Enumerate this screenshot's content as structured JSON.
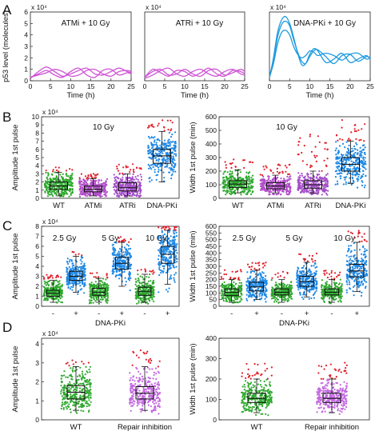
{
  "figure": {
    "panels": [
      {
        "letter": "A"
      },
      {
        "letter": "B"
      },
      {
        "letter": "C"
      },
      {
        "letter": "D"
      }
    ]
  },
  "colors": {
    "wt": "#2ea82e",
    "atm": "#b14ec9",
    "atr": "#a34ec7",
    "dnapk": "#1e88e5",
    "repair": "#c266e0",
    "outlier": "#e0202b",
    "line_magenta": "#cf55d6",
    "line_blue": "#1e9be0"
  },
  "chart_data": [
    {
      "id": "A1",
      "type": "line",
      "annotation": "ATMi + 10 Gy",
      "ylabel": "p53 level (molecules)",
      "xlabel": "Time (h)",
      "x_ticks": [
        0,
        5,
        10,
        15,
        20,
        25
      ],
      "y_ticks": [
        0,
        1,
        2,
        3,
        4,
        5,
        6
      ],
      "y_exponent": "x 10⁴",
      "xlim": [
        0,
        25
      ],
      "ylim": [
        0,
        6
      ],
      "series": [
        {
          "x": [
            0,
            2,
            4,
            6,
            8,
            10,
            12,
            14,
            16,
            18,
            20,
            22,
            24,
            25
          ],
          "values": [
            0.3,
            0.6,
            0.9,
            0.5,
            0.3,
            0.8,
            1.1,
            0.5,
            0.3,
            0.9,
            1.0,
            0.5,
            0.7,
            0.6
          ]
        },
        {
          "x": [
            0,
            2,
            4,
            6,
            8,
            10,
            12,
            14,
            16,
            18,
            20,
            22,
            24,
            25
          ],
          "values": [
            0.2,
            0.8,
            1.2,
            0.8,
            0.4,
            0.6,
            0.9,
            1.1,
            0.6,
            0.5,
            0.8,
            1.1,
            0.8,
            0.7
          ]
        },
        {
          "x": [
            0,
            2,
            4,
            6,
            8,
            10,
            12,
            14,
            16,
            18,
            20,
            22,
            24,
            25
          ],
          "values": [
            0.3,
            0.5,
            0.7,
            1.0,
            0.8,
            0.4,
            0.5,
            0.9,
            1.0,
            0.6,
            0.4,
            0.8,
            0.9,
            0.8
          ]
        }
      ]
    },
    {
      "id": "A2",
      "type": "line",
      "annotation": "ATRi + 10 Gy",
      "xlabel": "Time (h)",
      "x_ticks": [
        0,
        5,
        10,
        15,
        20,
        25
      ],
      "y_exponent": "x 10⁴",
      "xlim": [
        0,
        25
      ],
      "ylim": [
        0,
        6
      ],
      "series": [
        {
          "x": [
            0,
            2,
            4,
            6,
            8,
            10,
            12,
            14,
            16,
            18,
            20,
            22,
            24,
            25
          ],
          "values": [
            0.3,
            0.8,
            1.0,
            0.5,
            0.6,
            1.0,
            0.6,
            0.4,
            0.9,
            1.0,
            0.5,
            0.7,
            1.0,
            0.8
          ]
        },
        {
          "x": [
            0,
            2,
            4,
            6,
            8,
            10,
            12,
            14,
            16,
            18,
            20,
            22,
            24,
            25
          ],
          "values": [
            0.2,
            0.5,
            0.9,
            1.1,
            0.6,
            0.4,
            0.8,
            1.0,
            0.6,
            0.4,
            0.8,
            1.0,
            0.6,
            0.5
          ]
        },
        {
          "x": [
            0,
            2,
            4,
            6,
            8,
            10,
            12,
            14,
            16,
            18,
            20,
            22,
            24,
            25
          ],
          "values": [
            0.3,
            1.0,
            0.7,
            0.4,
            0.9,
            0.8,
            0.4,
            0.7,
            1.1,
            0.6,
            0.4,
            0.9,
            0.8,
            0.6
          ]
        }
      ]
    },
    {
      "id": "A3",
      "type": "line",
      "annotation": "DNA-PKi + 10 Gy",
      "xlabel": "Time (h)",
      "x_ticks": [
        0,
        5,
        10,
        15,
        20,
        25
      ],
      "y_exponent": "x 10⁴",
      "xlim": [
        0,
        25
      ],
      "ylim": [
        0,
        6
      ],
      "series": [
        {
          "x": [
            0,
            1,
            2,
            3,
            4,
            5,
            6,
            7,
            8,
            9,
            10,
            11,
            12,
            14,
            16,
            18,
            20,
            22,
            24,
            25
          ],
          "values": [
            0.3,
            2.0,
            4.2,
            5.3,
            5.6,
            5.0,
            3.8,
            2.4,
            1.4,
            1.5,
            2.3,
            2.8,
            2.6,
            1.6,
            1.9,
            2.4,
            1.6,
            1.9,
            2.2,
            1.9
          ]
        },
        {
          "x": [
            0,
            1,
            2,
            3,
            4,
            5,
            6,
            7,
            8,
            9,
            10,
            11,
            12,
            14,
            16,
            18,
            20,
            22,
            24,
            25
          ],
          "values": [
            0.3,
            1.8,
            3.8,
            4.9,
            5.2,
            4.8,
            3.6,
            2.5,
            1.7,
            1.5,
            2.1,
            2.6,
            2.7,
            2.1,
            1.5,
            2.2,
            2.3,
            1.7,
            2.1,
            2.0
          ]
        },
        {
          "x": [
            0,
            1,
            2,
            3,
            4,
            5,
            6,
            7,
            8,
            9,
            10,
            11,
            12,
            14,
            16,
            18,
            20,
            22,
            24,
            25
          ],
          "values": [
            0.3,
            1.5,
            3.2,
            4.2,
            4.4,
            4.0,
            3.0,
            2.3,
            2.0,
            2.2,
            2.6,
            2.5,
            2.2,
            2.4,
            2.2,
            1.8,
            2.3,
            2.4,
            1.9,
            2.0
          ]
        }
      ]
    },
    {
      "id": "B1",
      "type": "box_scatter",
      "annotation": "10 Gy",
      "ylabel": "Amplitude 1st pulse",
      "y_ticks": [
        0,
        1,
        2,
        3,
        4,
        5,
        6,
        7,
        8,
        9,
        10
      ],
      "y_exponent": "x 10⁴",
      "ylim": [
        0,
        10
      ],
      "categories": [
        "WT",
        "ATMi",
        "ATRi",
        "DNA-PKi"
      ],
      "groups": [
        {
          "q1": 1.1,
          "median": 1.5,
          "q3": 2.0,
          "wlo": 0.3,
          "whi": 3.2,
          "max": 3.8,
          "color": "wt"
        },
        {
          "q1": 0.8,
          "median": 1.1,
          "q3": 1.5,
          "wlo": 0.3,
          "whi": 2.4,
          "max": 3.0,
          "color": "atm"
        },
        {
          "q1": 0.9,
          "median": 1.3,
          "q3": 1.9,
          "wlo": 0.3,
          "whi": 3.0,
          "max": 4.2,
          "color": "atr"
        },
        {
          "q1": 4.3,
          "median": 5.2,
          "q3": 6.0,
          "wlo": 2.0,
          "whi": 8.2,
          "max": 9.8,
          "color": "dnapk"
        }
      ]
    },
    {
      "id": "B2",
      "type": "box_scatter",
      "annotation": "10 Gy",
      "ylabel": "Width 1st pulse (min)",
      "y_ticks": [
        0,
        100,
        200,
        300,
        400,
        500,
        600
      ],
      "ylim": [
        0,
        600
      ],
      "categories": [
        "WT",
        "ATMi",
        "ATRi",
        "DNA-PKi"
      ],
      "groups": [
        {
          "q1": 80,
          "median": 105,
          "q3": 130,
          "wlo": 40,
          "whi": 210,
          "max": 300,
          "color": "wt"
        },
        {
          "q1": 70,
          "median": 90,
          "q3": 115,
          "wlo": 40,
          "whi": 170,
          "max": 250,
          "color": "atm"
        },
        {
          "q1": 75,
          "median": 100,
          "q3": 130,
          "wlo": 40,
          "whi": 200,
          "max": 480,
          "color": "atr"
        },
        {
          "q1": 200,
          "median": 250,
          "q3": 300,
          "wlo": 110,
          "whi": 420,
          "max": 580,
          "color": "dnapk"
        }
      ]
    },
    {
      "id": "C1",
      "type": "box_scatter",
      "ylabel": "Amplitude 1st pulse",
      "xlabel": "DNA-PKi",
      "y_ticks": [
        0,
        1,
        2,
        3,
        4,
        5,
        6,
        7,
        8
      ],
      "y_exponent": "x 10⁴",
      "ylim": [
        0,
        8
      ],
      "dose_labels": [
        "2.5 Gy",
        "5 Gy",
        "10 Gy"
      ],
      "categories": [
        "-",
        "+",
        "-",
        "+",
        "-",
        "+"
      ],
      "groups": [
        {
          "q1": 1.0,
          "median": 1.3,
          "q3": 1.6,
          "wlo": 0.4,
          "whi": 2.6,
          "max": 3.2,
          "color": "wt"
        },
        {
          "q1": 2.6,
          "median": 3.0,
          "q3": 3.5,
          "wlo": 1.4,
          "whi": 5.0,
          "max": 5.6,
          "color": "dnapk"
        },
        {
          "q1": 1.1,
          "median": 1.4,
          "q3": 1.8,
          "wlo": 0.4,
          "whi": 2.8,
          "max": 3.4,
          "color": "wt"
        },
        {
          "q1": 3.7,
          "median": 4.3,
          "q3": 4.9,
          "wlo": 2.0,
          "whi": 6.4,
          "max": 7.0,
          "color": "dnapk"
        },
        {
          "q1": 1.1,
          "median": 1.5,
          "q3": 1.9,
          "wlo": 0.4,
          "whi": 3.2,
          "max": 3.8,
          "color": "wt"
        },
        {
          "q1": 4.3,
          "median": 5.2,
          "q3": 6.0,
          "wlo": 2.2,
          "whi": 7.6,
          "max": 8.0,
          "color": "dnapk"
        }
      ]
    },
    {
      "id": "C2",
      "type": "box_scatter",
      "ylabel": "Width 1st pulse (min)",
      "xlabel": "DNA-PKi",
      "y_ticks": [
        0,
        50,
        100,
        150,
        200,
        250,
        300,
        350,
        400,
        450,
        500,
        550,
        600
      ],
      "ylim": [
        0,
        600
      ],
      "dose_labels": [
        "2.5 Gy",
        "5 Gy",
        "10 Gy"
      ],
      "categories": [
        "-",
        "+",
        "-",
        "+",
        "-",
        "+"
      ],
      "groups": [
        {
          "q1": 80,
          "median": 105,
          "q3": 130,
          "wlo": 30,
          "whi": 200,
          "max": 280,
          "color": "wt"
        },
        {
          "q1": 115,
          "median": 145,
          "q3": 180,
          "wlo": 50,
          "whi": 270,
          "max": 330,
          "color": "dnapk"
        },
        {
          "q1": 85,
          "median": 105,
          "q3": 130,
          "wlo": 30,
          "whi": 200,
          "max": 260,
          "color": "wt"
        },
        {
          "q1": 150,
          "median": 185,
          "q3": 225,
          "wlo": 70,
          "whi": 330,
          "max": 400,
          "color": "dnapk"
        },
        {
          "q1": 85,
          "median": 105,
          "q3": 130,
          "wlo": 30,
          "whi": 200,
          "max": 280,
          "color": "wt"
        },
        {
          "q1": 220,
          "median": 265,
          "q3": 315,
          "wlo": 110,
          "whi": 480,
          "max": 580,
          "color": "dnapk"
        }
      ]
    },
    {
      "id": "D1",
      "type": "box_scatter",
      "ylabel": "Amplitude 1st pulse",
      "y_ticks": [
        0,
        1,
        2,
        3,
        4
      ],
      "y_exponent": "x 10⁴",
      "ylim": [
        0,
        4.3
      ],
      "categories": [
        "WT",
        "Repair inhibition"
      ],
      "groups": [
        {
          "q1": 1.1,
          "median": 1.45,
          "q3": 1.8,
          "wlo": 0.5,
          "whi": 2.8,
          "max": 3.4,
          "color": "wt"
        },
        {
          "q1": 1.1,
          "median": 1.4,
          "q3": 1.75,
          "wlo": 0.5,
          "whi": 2.8,
          "max": 3.7,
          "color": "repair"
        }
      ]
    },
    {
      "id": "D2",
      "type": "box_scatter",
      "ylabel": "Width 1st pulse (min)",
      "y_ticks": [
        0,
        100,
        200,
        300,
        400
      ],
      "ylim": [
        0,
        400
      ],
      "categories": [
        "WT",
        "Repair inhibition"
      ],
      "groups": [
        {
          "q1": 85,
          "median": 105,
          "q3": 130,
          "wlo": 35,
          "whi": 200,
          "max": 280,
          "color": "wt"
        },
        {
          "q1": 85,
          "median": 105,
          "q3": 130,
          "wlo": 35,
          "whi": 200,
          "max": 280,
          "color": "repair"
        }
      ]
    }
  ]
}
